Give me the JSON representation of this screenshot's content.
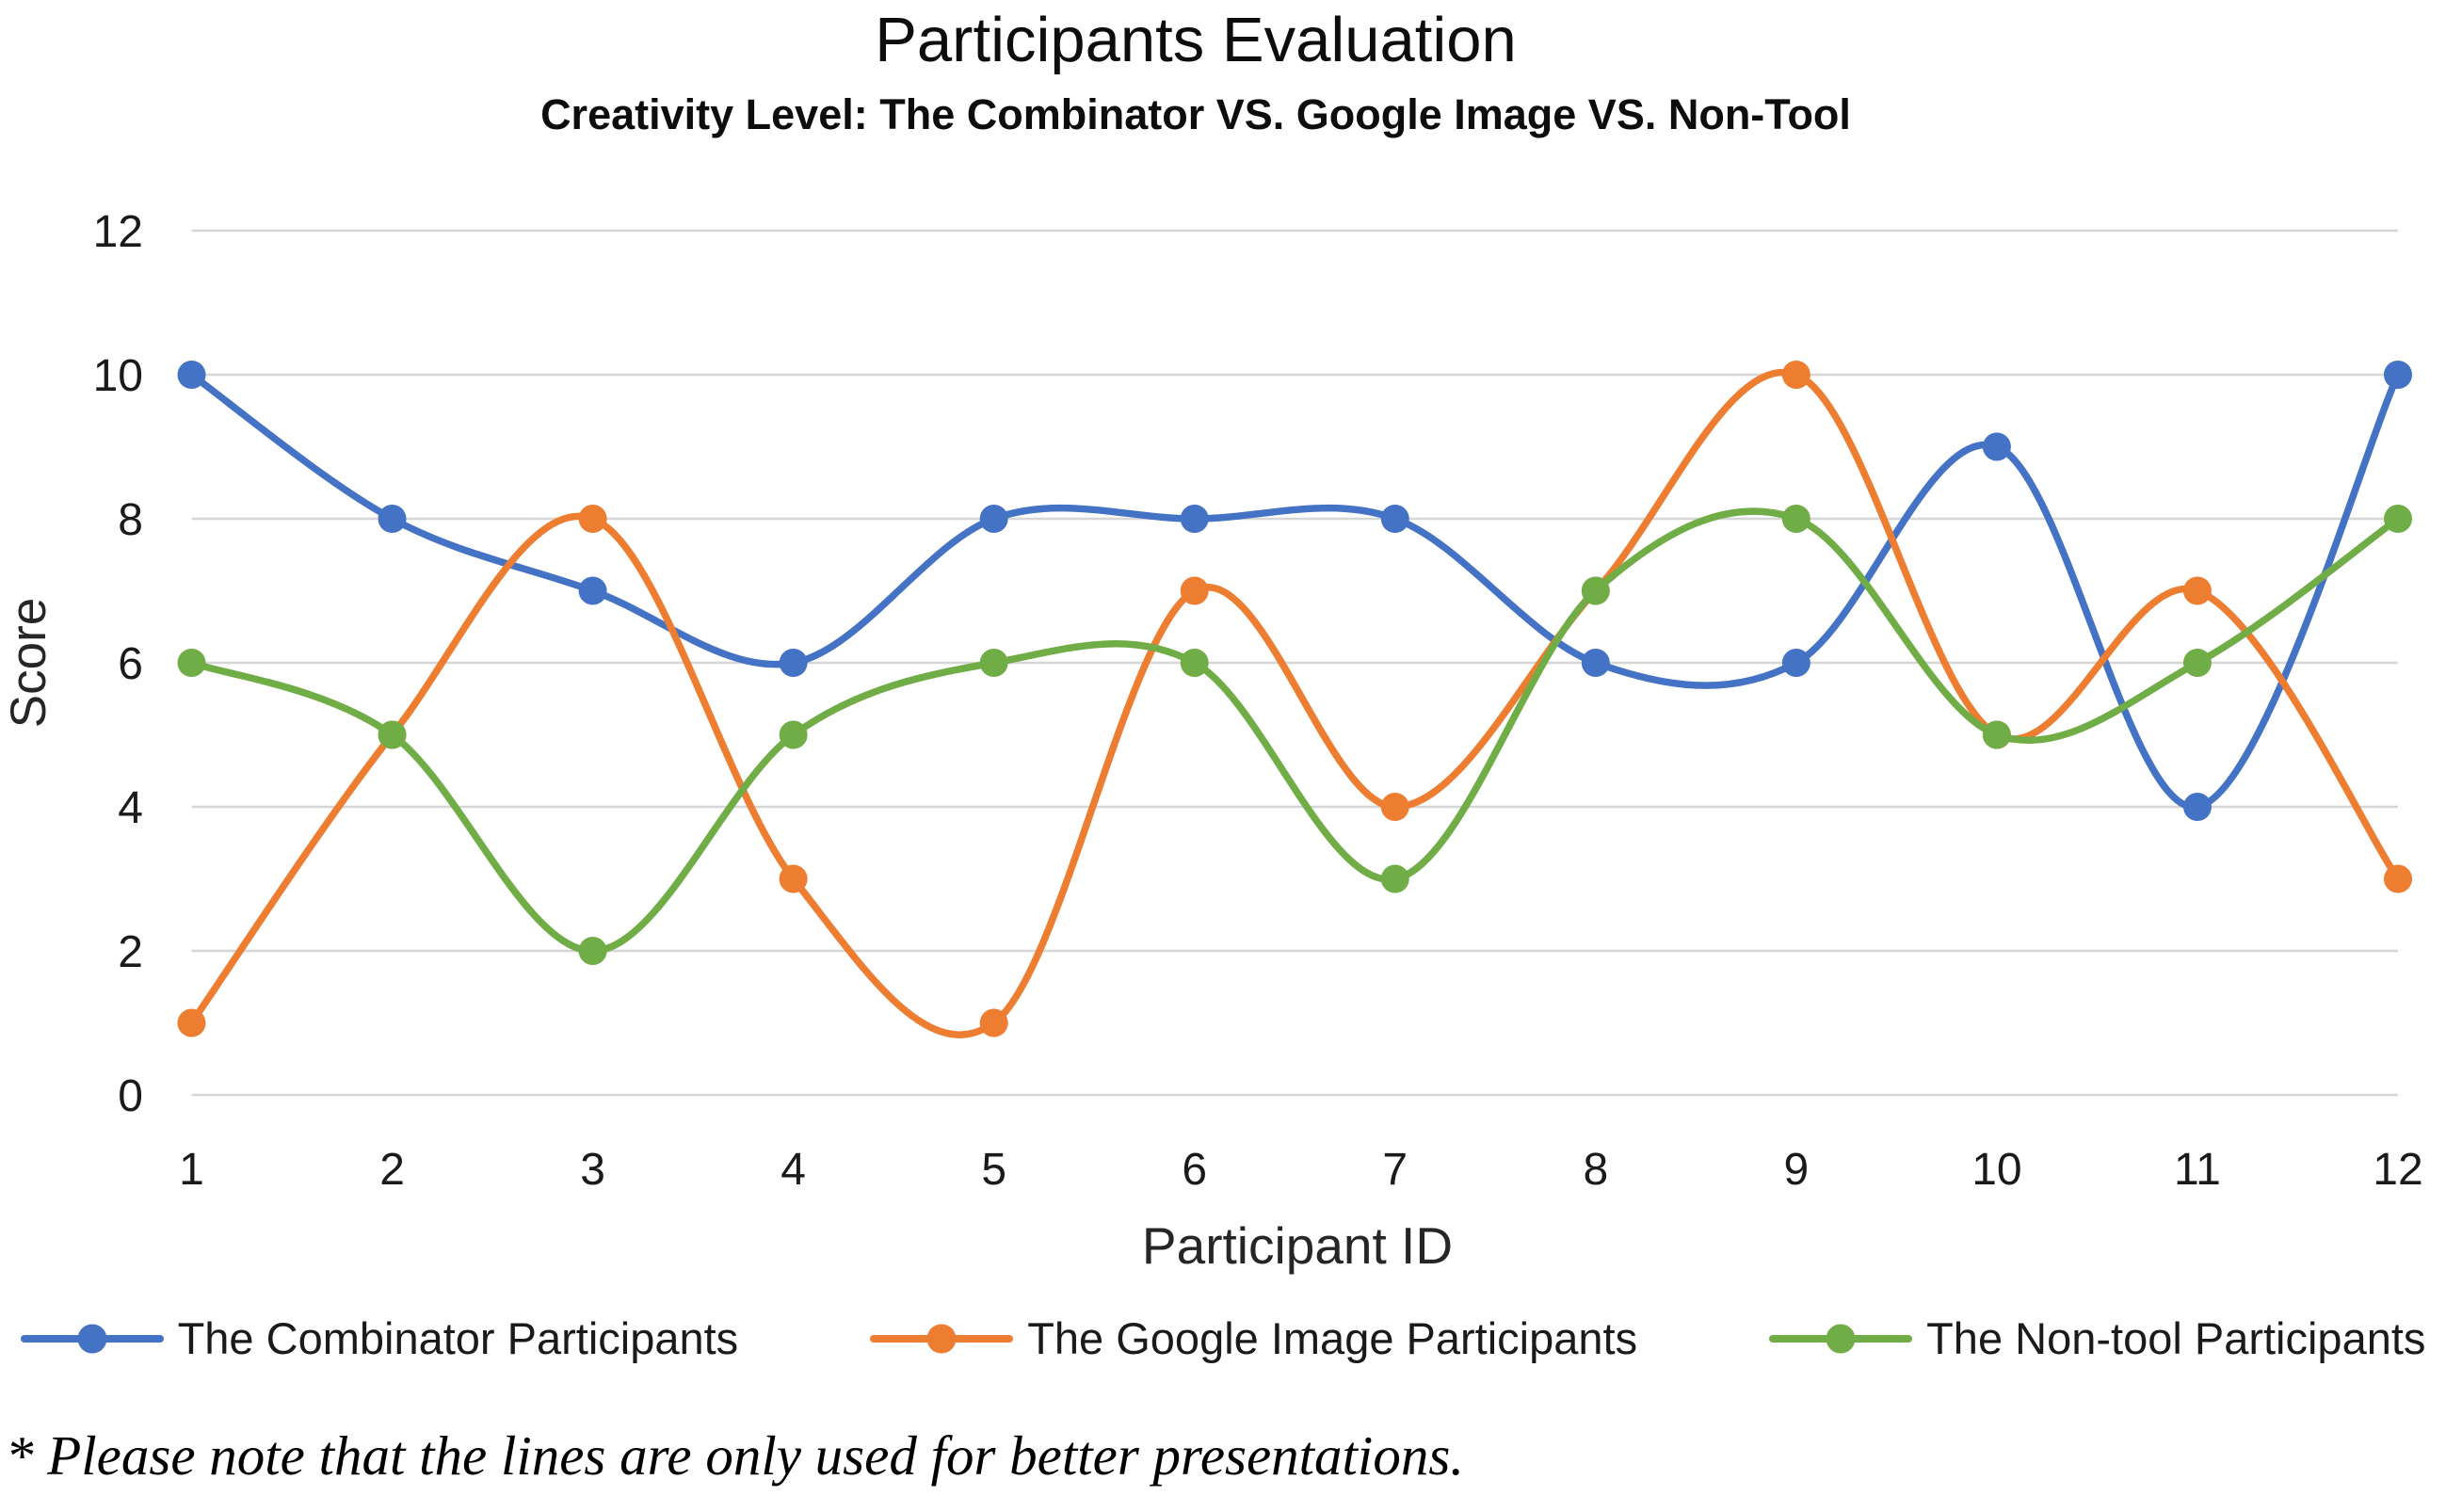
{
  "chart_data": {
    "type": "line",
    "title": "Participants Evaluation",
    "subtitle": "Creativity Level: The Combinator VS. Google Image VS. Non-Tool",
    "xlabel": "Participant ID",
    "ylabel": "Score",
    "x": [
      1,
      2,
      3,
      4,
      5,
      6,
      7,
      8,
      9,
      10,
      11,
      12
    ],
    "y_ticks": [
      0,
      2,
      4,
      6,
      8,
      10,
      12
    ],
    "ylim": [
      0,
      12
    ],
    "grid": "horizontal",
    "smooth_lines": true,
    "legend_position": "bottom",
    "gridline_color": "#D6D6D6",
    "tick_label_color": "#1a1a1a",
    "series": [
      {
        "name": "The Combinator Participants",
        "color": "#4472C4",
        "values": [
          10,
          8,
          7,
          6,
          8,
          8,
          8,
          6,
          6,
          9,
          4,
          10
        ]
      },
      {
        "name": "The Google Image Participants",
        "color": "#ED7D31",
        "values": [
          1,
          5,
          8,
          3,
          1,
          7,
          4,
          7,
          10,
          5,
          7,
          3
        ]
      },
      {
        "name": "The Non-tool Participants",
        "color": "#70AD47",
        "values": [
          6,
          5,
          2,
          5,
          6,
          6,
          3,
          7,
          8,
          5,
          6,
          8
        ]
      }
    ]
  },
  "footnote": "* Please note that the lines are only used for better presentations."
}
